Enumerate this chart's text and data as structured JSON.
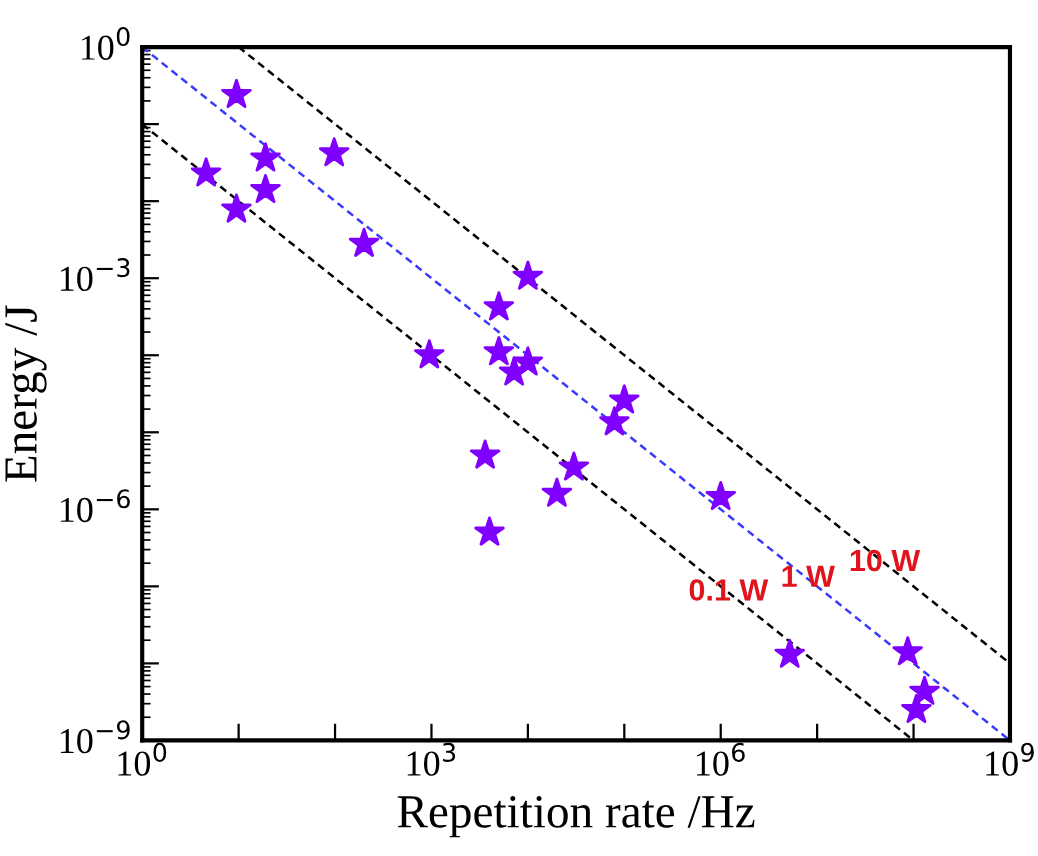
{
  "chart_data": {
    "type": "scatter",
    "xlabel": "Repetition rate /Hz",
    "ylabel": "Energy /J",
    "log": "xy",
    "grid": false,
    "xlim": [
      1,
      1000000000
    ],
    "ylim": [
      1e-09,
      1
    ],
    "xticks": [
      {
        "value": 1,
        "label": "10$^{0}$"
      },
      {
        "value": 10,
        "label": null
      },
      {
        "value": 100,
        "label": null
      },
      {
        "value": 1000,
        "label": "10$^{3}$"
      },
      {
        "value": 10000,
        "label": null
      },
      {
        "value": 100000,
        "label": null
      },
      {
        "value": 1000000,
        "label": "10$^{6}$"
      },
      {
        "value": 10000000,
        "label": null
      },
      {
        "value": 100000000,
        "label": null
      },
      {
        "value": 1000000000,
        "label": "10$^{9}$"
      }
    ],
    "yticks": [
      {
        "value": 1e-09,
        "label": "10$^{−9}$"
      },
      {
        "value": 1e-08,
        "label": null
      },
      {
        "value": 1e-07,
        "label": null
      },
      {
        "value": 1e-06,
        "label": "10$^{−6}$"
      },
      {
        "value": 1e-05,
        "label": null
      },
      {
        "value": 0.0001,
        "label": null
      },
      {
        "value": 0.001,
        "label": "10$^{−3}$"
      },
      {
        "value": 0.01,
        "label": null
      },
      {
        "value": 0.1,
        "label": null
      },
      {
        "value": 1,
        "label": "10$^{0}$"
      }
    ],
    "series": [
      {
        "type": "line",
        "color": "#000000",
        "line_style": "dashed",
        "marker": "none",
        "x": [
          10,
          1000000000
        ],
        "values": [
          1,
          1e-08
        ]
      },
      {
        "type": "line",
        "color": "#3a3aff",
        "line_style": "dashed",
        "marker": "none",
        "x": [
          1,
          1000000000
        ],
        "values": [
          1,
          1e-09
        ]
      },
      {
        "type": "line",
        "color": "#000000",
        "line_style": "dashed",
        "marker": "none",
        "x": [
          1,
          100000000
        ],
        "values": [
          0.1,
          1e-09
        ]
      },
      {
        "color": "#8000ff",
        "marker": "star",
        "x": [
          9.5,
          4.6,
          19,
          98,
          19,
          9.5,
          200,
          10000,
          5000,
          950,
          5000,
          10000,
          7200,
          100000,
          79000,
          3600,
          30000,
          20000,
          4000,
          1000000,
          5200000,
          87000000,
          130000000,
          107000000
        ],
        "values": [
          0.24,
          0.023,
          0.036,
          0.042,
          0.014,
          0.0078,
          0.0028,
          0.00105,
          0.00042,
          0.0001,
          0.00011,
          8.1e-05,
          6e-05,
          2.6e-05,
          1.35e-05,
          5e-06,
          3.5e-06,
          1.6e-06,
          5e-07,
          1.45e-06,
          1.3e-08,
          1.4e-08,
          4.3e-09,
          2.5e-09
        ]
      }
    ],
    "annotations": [
      {
        "text": "10 W",
        "x": 50000000,
        "y": 2e-07
      },
      {
        "text": "1 W",
        "x": 8000000,
        "y": 1.25e-07
      },
      {
        "text": "0.1 W",
        "x": 1200000,
        "y": 8.3e-08
      }
    ]
  }
}
